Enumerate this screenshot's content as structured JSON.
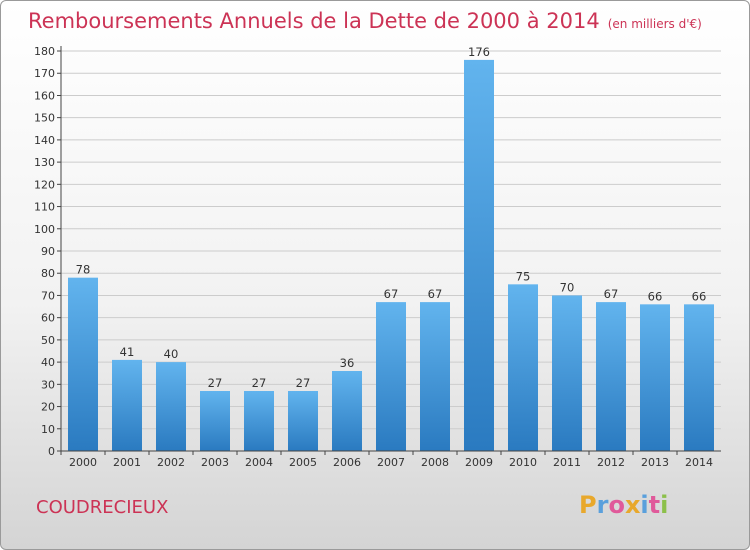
{
  "title": "Remboursements Annuels de la Dette de 2000 à 2014",
  "unit": "(en milliers d'€)",
  "place": "COUDRECIEUX",
  "logo": {
    "letters": [
      "P",
      "r",
      "o",
      "x",
      "i",
      "t",
      "i"
    ],
    "colors": [
      "#e8a82c",
      "#5aa0dc",
      "#e05a9a",
      "#e8a82c",
      "#5aa0dc",
      "#e05a9a",
      "#8cc04a"
    ]
  },
  "colors": {
    "bar_top": "#62b4ee",
    "bar_bottom": "#2a7ac0",
    "title": "#cc3355",
    "grid": "#cccccc"
  },
  "chart_data": {
    "type": "bar",
    "title": "Remboursements Annuels de la Dette de 2000 à 2014",
    "xlabel": "",
    "ylabel": "",
    "categories": [
      "2000",
      "2001",
      "2002",
      "2003",
      "2004",
      "2005",
      "2006",
      "2007",
      "2008",
      "2009",
      "2010",
      "2011",
      "2012",
      "2013",
      "2014"
    ],
    "values": [
      78,
      41,
      40,
      27,
      27,
      27,
      36,
      67,
      67,
      176,
      75,
      70,
      67,
      66,
      66
    ],
    "ylim": [
      0,
      180
    ],
    "yticks": [
      0,
      10,
      20,
      30,
      40,
      50,
      60,
      70,
      80,
      90,
      100,
      110,
      120,
      130,
      140,
      150,
      160,
      170,
      180
    ],
    "grid": true,
    "legend": "none"
  }
}
